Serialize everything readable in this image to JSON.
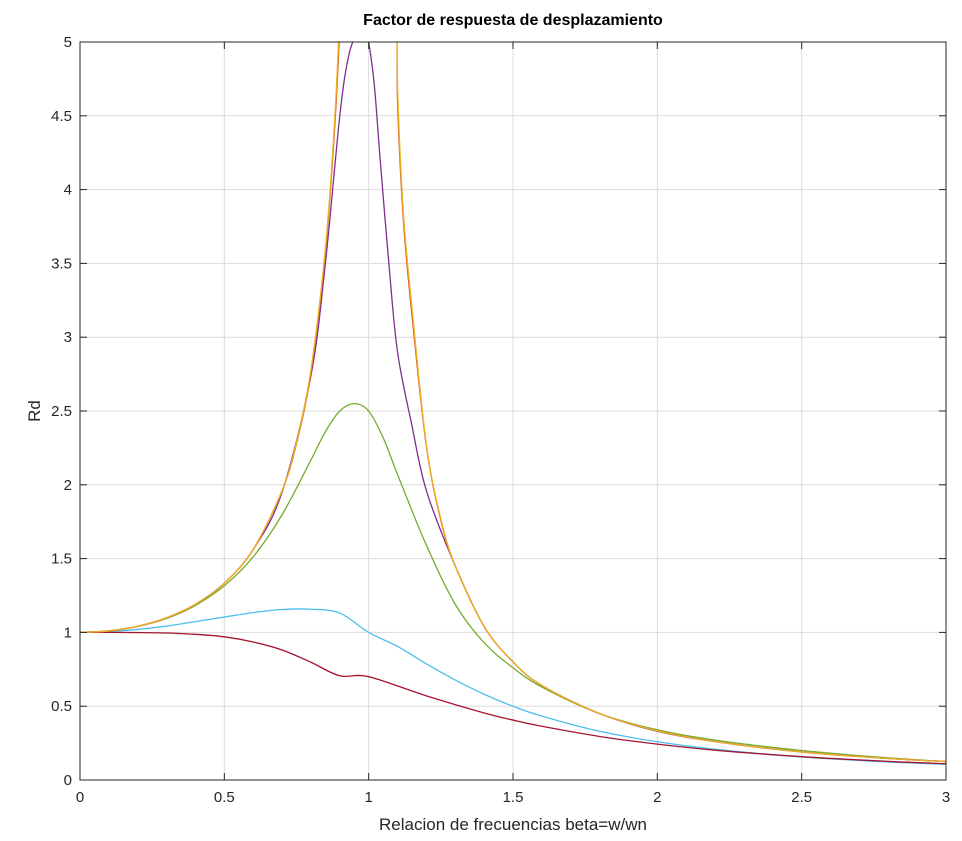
{
  "chart_data": {
    "type": "line",
    "title": "Factor de respuesta de desplazamiento",
    "xlabel": "Relacion de frecuencias beta=w/wn",
    "ylabel": "Rd",
    "xlim": [
      0,
      3
    ],
    "ylim": [
      0,
      5
    ],
    "xticks": [
      0,
      0.5,
      1,
      1.5,
      2,
      2.5,
      3
    ],
    "xtick_labels": [
      "0",
      "0.5",
      "1",
      "1.5",
      "2",
      "2.5",
      "3"
    ],
    "yticks": [
      0,
      0.5,
      1,
      1.5,
      2,
      2.5,
      3,
      3.5,
      4,
      4.5,
      5
    ],
    "ytick_labels": [
      "0",
      "0.5",
      "1",
      "1.5",
      "2",
      "2.5",
      "3",
      "3.5",
      "4",
      "4.5",
      "5"
    ],
    "grid": true,
    "legend": "none",
    "series": [
      {
        "color": "#4dbeee",
        "x": [
          0,
          0.1,
          0.2,
          0.3,
          0.4,
          0.5,
          0.6,
          0.7,
          0.8,
          0.9,
          1.0,
          1.1,
          1.2,
          1.3,
          1.4,
          1.5,
          1.6,
          1.8,
          2.0,
          2.2,
          2.5,
          2.8,
          3.0
        ],
        "values": [
          1.0,
          1.005,
          1.02,
          1.043,
          1.073,
          1.104,
          1.134,
          1.155,
          1.157,
          1.131,
          1.0,
          0.905,
          0.787,
          0.677,
          0.581,
          0.5,
          0.433,
          0.33,
          0.259,
          0.208,
          0.156,
          0.122,
          0.106
        ]
      },
      {
        "color": "#a2142f",
        "x": [
          0,
          0.1,
          0.2,
          0.3,
          0.4,
          0.5,
          0.6,
          0.7,
          0.8,
          0.9,
          1.0,
          1.2,
          1.4,
          1.5,
          1.6,
          1.8,
          2.0,
          2.2,
          2.5,
          2.8,
          3.0
        ],
        "values": [
          1.0,
          1.0,
          0.999,
          0.996,
          0.987,
          0.97,
          0.935,
          0.881,
          0.798,
          0.706,
          0.7,
          0.57,
          0.454,
          0.406,
          0.364,
          0.295,
          0.243,
          0.202,
          0.158,
          0.126,
          0.11
        ]
      },
      {
        "color": "#77ac30",
        "x": [
          0,
          0.1,
          0.2,
          0.3,
          0.4,
          0.5,
          0.6,
          0.7,
          0.8,
          0.85,
          0.9,
          0.95,
          1.0,
          1.05,
          1.1,
          1.2,
          1.3,
          1.4,
          1.5,
          1.6,
          1.8,
          2.0,
          2.2,
          2.5,
          2.8,
          3.0
        ],
        "values": [
          1.0,
          1.01,
          1.041,
          1.095,
          1.183,
          1.316,
          1.512,
          1.797,
          2.168,
          2.36,
          2.5,
          2.55,
          2.5,
          2.32,
          2.07,
          1.59,
          1.19,
          0.93,
          0.76,
          0.63,
          0.45,
          0.34,
          0.27,
          0.2,
          0.15,
          0.125
        ]
      },
      {
        "color": "#7e2f8e",
        "x": [
          0,
          0.1,
          0.2,
          0.3,
          0.4,
          0.5,
          0.6,
          0.7,
          0.8,
          0.85,
          0.9,
          0.93,
          0.96,
          0.99,
          1.0,
          1.02,
          1.04,
          1.07,
          1.1,
          1.15,
          1.2,
          1.3,
          1.4,
          1.5,
          1.6,
          1.8,
          2.0,
          2.2,
          2.5,
          2.8,
          3.0
        ],
        "values": [
          1.0,
          1.01,
          1.041,
          1.098,
          1.19,
          1.333,
          1.561,
          1.95,
          2.74,
          3.5,
          4.5,
          4.9,
          5.05,
          5.05,
          5.0,
          4.7,
          4.2,
          3.5,
          2.9,
          2.4,
          1.96,
          1.45,
          1.04,
          0.8,
          0.64,
          0.45,
          0.33,
          0.26,
          0.19,
          0.146,
          0.125
        ]
      },
      {
        "color": "#d95319",
        "x": [
          0,
          0.1,
          0.2,
          0.3,
          0.4,
          0.5,
          0.6,
          0.7,
          0.75,
          0.8,
          0.85,
          0.88,
          0.9,
          0.92,
          1.08,
          1.1,
          1.12,
          1.15,
          1.2,
          1.25,
          1.3,
          1.4,
          1.5,
          1.6,
          1.8,
          2.0,
          2.2,
          2.5,
          2.8,
          3.0
        ],
        "values": [
          1.0,
          1.01,
          1.042,
          1.099,
          1.19,
          1.333,
          1.562,
          1.96,
          2.28,
          2.76,
          3.58,
          4.35,
          5.1,
          6.2,
          6.2,
          4.6,
          3.8,
          3.15,
          2.26,
          1.76,
          1.45,
          1.04,
          0.8,
          0.64,
          0.45,
          0.333,
          0.26,
          0.19,
          0.146,
          0.125
        ]
      },
      {
        "color": "#edb120",
        "x": [
          0,
          0.1,
          0.2,
          0.3,
          0.4,
          0.5,
          0.6,
          0.7,
          0.75,
          0.8,
          0.85,
          0.88,
          0.9,
          0.92,
          1.08,
          1.1,
          1.12,
          1.15,
          1.2,
          1.25,
          1.3,
          1.4,
          1.5,
          1.6,
          1.8,
          2.0,
          2.2,
          2.5,
          2.8,
          3.0
        ],
        "values": [
          1.0,
          1.01,
          1.042,
          1.099,
          1.19,
          1.333,
          1.562,
          1.96,
          2.29,
          2.78,
          3.6,
          4.4,
          5.2,
          6.3,
          6.3,
          4.7,
          3.85,
          3.2,
          2.27,
          1.77,
          1.45,
          1.04,
          0.8,
          0.64,
          0.45,
          0.333,
          0.26,
          0.19,
          0.146,
          0.125
        ]
      }
    ]
  }
}
